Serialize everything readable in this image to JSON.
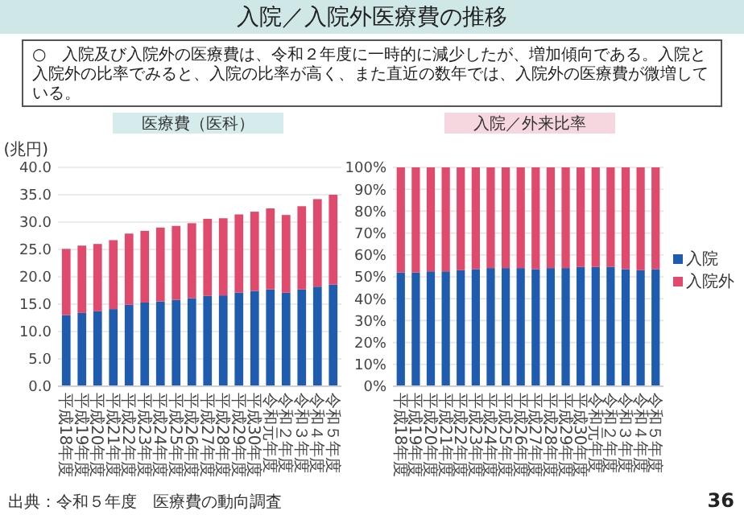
{
  "chart_data": [
    {
      "type": "other",
      "title": "入院／入院外医療費の推移",
      "annotations": [
        "○　入院及び入院外の医療費は、令和２年度に一時的に減少したが、増加傾向である。入院と入院外の比率でみると、入院の比率が高く、また直近の数年では、入院外の医療費が微増している。",
        "出典：令和５年度　医療費の動向調査",
        "36"
      ]
    },
    {
      "type": "bar",
      "title": "医療費（医科）",
      "ylabel": "(兆円)",
      "stacked": true,
      "grid": "y",
      "categories": [
        "平成18年度",
        "平成19年度",
        "平成20年度",
        "平成21年度",
        "平成22年度",
        "平成23年度",
        "平成24年度",
        "平成25年度",
        "平成26年度",
        "平成27年度",
        "平成28年度",
        "平成29年度",
        "平成30年度",
        "令和元年度",
        "令和２年度",
        "令和３年度",
        "令和４年度",
        "令和５年度"
      ],
      "ylim": [
        0,
        40
      ],
      "yticks": [
        {
          "value": 0,
          "label": "0.0"
        },
        {
          "value": 5,
          "label": "5.0"
        },
        {
          "value": 10,
          "label": "10.0"
        },
        {
          "value": 15,
          "label": "15.0"
        },
        {
          "value": 20,
          "label": "20.0"
        },
        {
          "value": 25,
          "label": "25.0"
        },
        {
          "value": 30,
          "label": "30.0"
        },
        {
          "value": 35,
          "label": "35.0"
        },
        {
          "value": 40,
          "label": "40.0"
        }
      ],
      "series": [
        {
          "color": "#1f5cb0",
          "values": [
            13.0,
            13.4,
            13.7,
            14.1,
            14.9,
            15.3,
            15.5,
            15.8,
            16.1,
            16.5,
            16.6,
            17.1,
            17.4,
            17.7,
            17.1,
            17.7,
            18.2,
            18.6
          ]
        },
        {
          "color": "#e04a6c",
          "values": [
            12.1,
            12.3,
            12.3,
            12.6,
            13.0,
            13.1,
            13.5,
            13.5,
            13.7,
            14.1,
            14.1,
            14.3,
            14.5,
            14.8,
            14.2,
            15.2,
            16.0,
            16.4
          ]
        }
      ]
    },
    {
      "type": "bar",
      "title": "入院／外来比率",
      "stacked": true,
      "grid": "y",
      "legend": "right",
      "categories": [
        "平成18年度",
        "平成19年度",
        "平成20年度",
        "平成21年度",
        "平成22年度",
        "平成23年度",
        "平成24年度",
        "平成25年度",
        "平成26年度",
        "平成27年度",
        "平成28年度",
        "平成29年度",
        "平成30年度",
        "令和元年度",
        "令和２年度",
        "令和３年度",
        "令和４年度",
        "令和５年度"
      ],
      "ylim": [
        0,
        100
      ],
      "yticks": [
        {
          "value": 0,
          "label": "0%"
        },
        {
          "value": 10,
          "label": "10%"
        },
        {
          "value": 20,
          "label": "20%"
        },
        {
          "value": 30,
          "label": "30%"
        },
        {
          "value": 40,
          "label": "40%"
        },
        {
          "value": 50,
          "label": "50%"
        },
        {
          "value": 60,
          "label": "60%"
        },
        {
          "value": 70,
          "label": "70%"
        },
        {
          "value": 80,
          "label": "80%"
        },
        {
          "value": 90,
          "label": "90%"
        },
        {
          "value": 100,
          "label": "100%"
        }
      ],
      "series": [
        {
          "name": "入院",
          "color": "#1f5cb0",
          "values": [
            52,
            52,
            52.5,
            52.5,
            53,
            53.5,
            54,
            54,
            54,
            53.5,
            54,
            54,
            54.5,
            54.5,
            54.5,
            53.5,
            53,
            53.5
          ]
        },
        {
          "name": "入院外",
          "color": "#e04a6c",
          "values": [
            48,
            48,
            47.5,
            47.5,
            47,
            46.5,
            46,
            46,
            46,
            46.5,
            46,
            46,
            45.5,
            45.5,
            45.5,
            46.5,
            47,
            46.5
          ]
        }
      ]
    }
  ]
}
